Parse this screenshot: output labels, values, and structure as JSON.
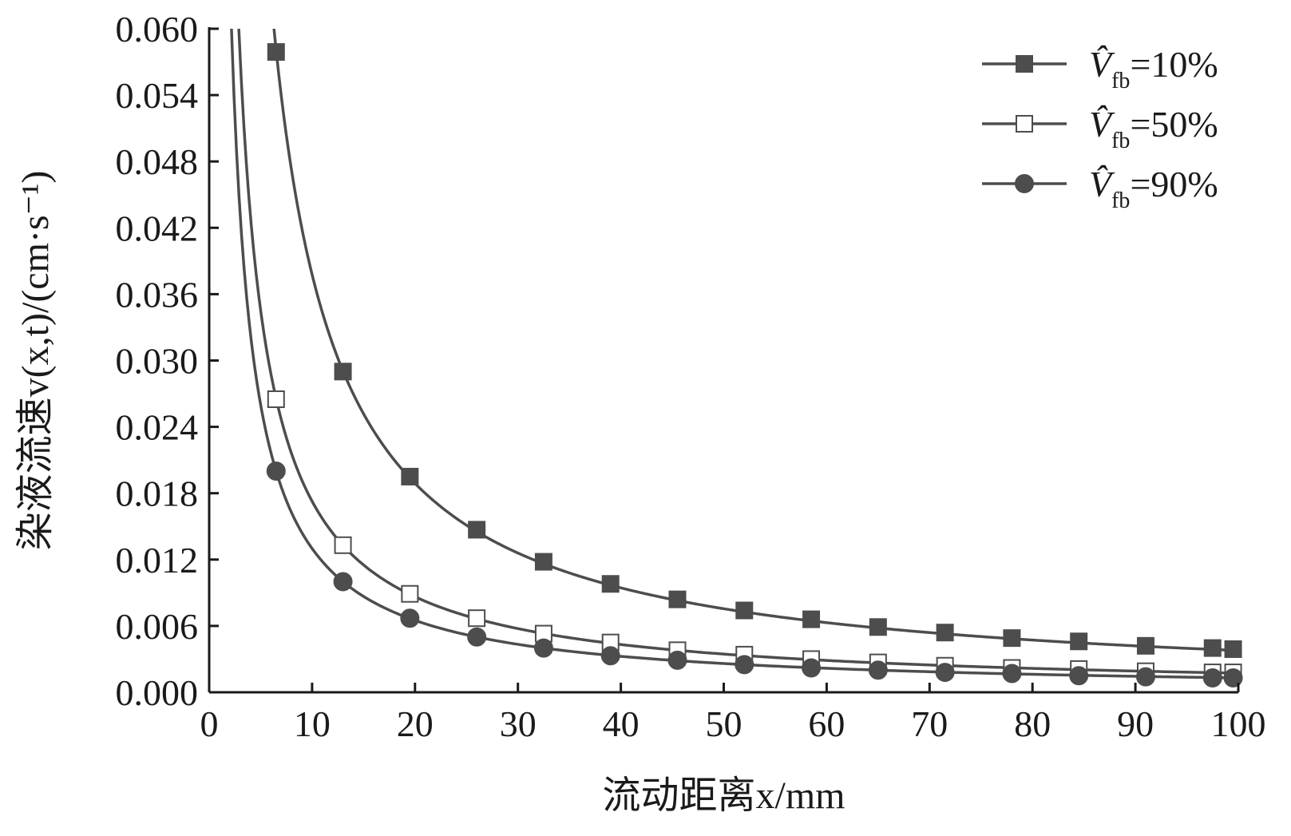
{
  "chart_data": {
    "type": "line",
    "xlabel": "流动距离x/mm",
    "ylabel": "染液流速v(x,t)/(cm·s⁻¹)",
    "xlim": [
      0,
      100
    ],
    "ylim": [
      0,
      0.06
    ],
    "xticks": [
      "0",
      "10",
      "20",
      "30",
      "40",
      "50",
      "60",
      "70",
      "80",
      "90",
      "100"
    ],
    "yticks": [
      "0.000",
      "0.006",
      "0.012",
      "0.018",
      "0.024",
      "0.030",
      "0.036",
      "0.042",
      "0.048",
      "0.054",
      "0.060"
    ],
    "grid": false,
    "legend_position": "top-right",
    "x": [
      6.5,
      13,
      19.5,
      26,
      32.5,
      39,
      45.5,
      52,
      58.5,
      65,
      71.5,
      78,
      84.5,
      91,
      97.5,
      99.5
    ],
    "series": [
      {
        "name": "V̂fb=10%",
        "label_var": "V̂",
        "label_sub": "fb",
        "label_rest": "=10%",
        "marker": "square-filled",
        "color": "#4d4d4d",
        "values": [
          0.0579,
          0.029,
          0.0195,
          0.0147,
          0.0118,
          0.0098,
          0.0084,
          0.0074,
          0.0066,
          0.0059,
          0.0054,
          0.0049,
          0.0046,
          0.0042,
          0.004,
          0.0039
        ]
      },
      {
        "name": "V̂fb=50%",
        "label_var": "V̂",
        "label_sub": "fb",
        "label_rest": "=50%",
        "marker": "square-open",
        "color": "#4d4d4d",
        "values": [
          0.0265,
          0.0133,
          0.0089,
          0.0067,
          0.0053,
          0.0045,
          0.0038,
          0.0034,
          0.003,
          0.0027,
          0.0024,
          0.0022,
          0.0021,
          0.0019,
          0.0018,
          0.0018
        ]
      },
      {
        "name": "V̂fb=90%",
        "label_var": "V̂",
        "label_sub": "fb",
        "label_rest": "=90%",
        "marker": "circle-filled",
        "color": "#4d4d4d",
        "values": [
          0.02,
          0.01,
          0.0067,
          0.005,
          0.004,
          0.0033,
          0.0029,
          0.0025,
          0.0022,
          0.002,
          0.0018,
          0.0017,
          0.0015,
          0.0014,
          0.0013,
          0.0013
        ]
      }
    ]
  }
}
